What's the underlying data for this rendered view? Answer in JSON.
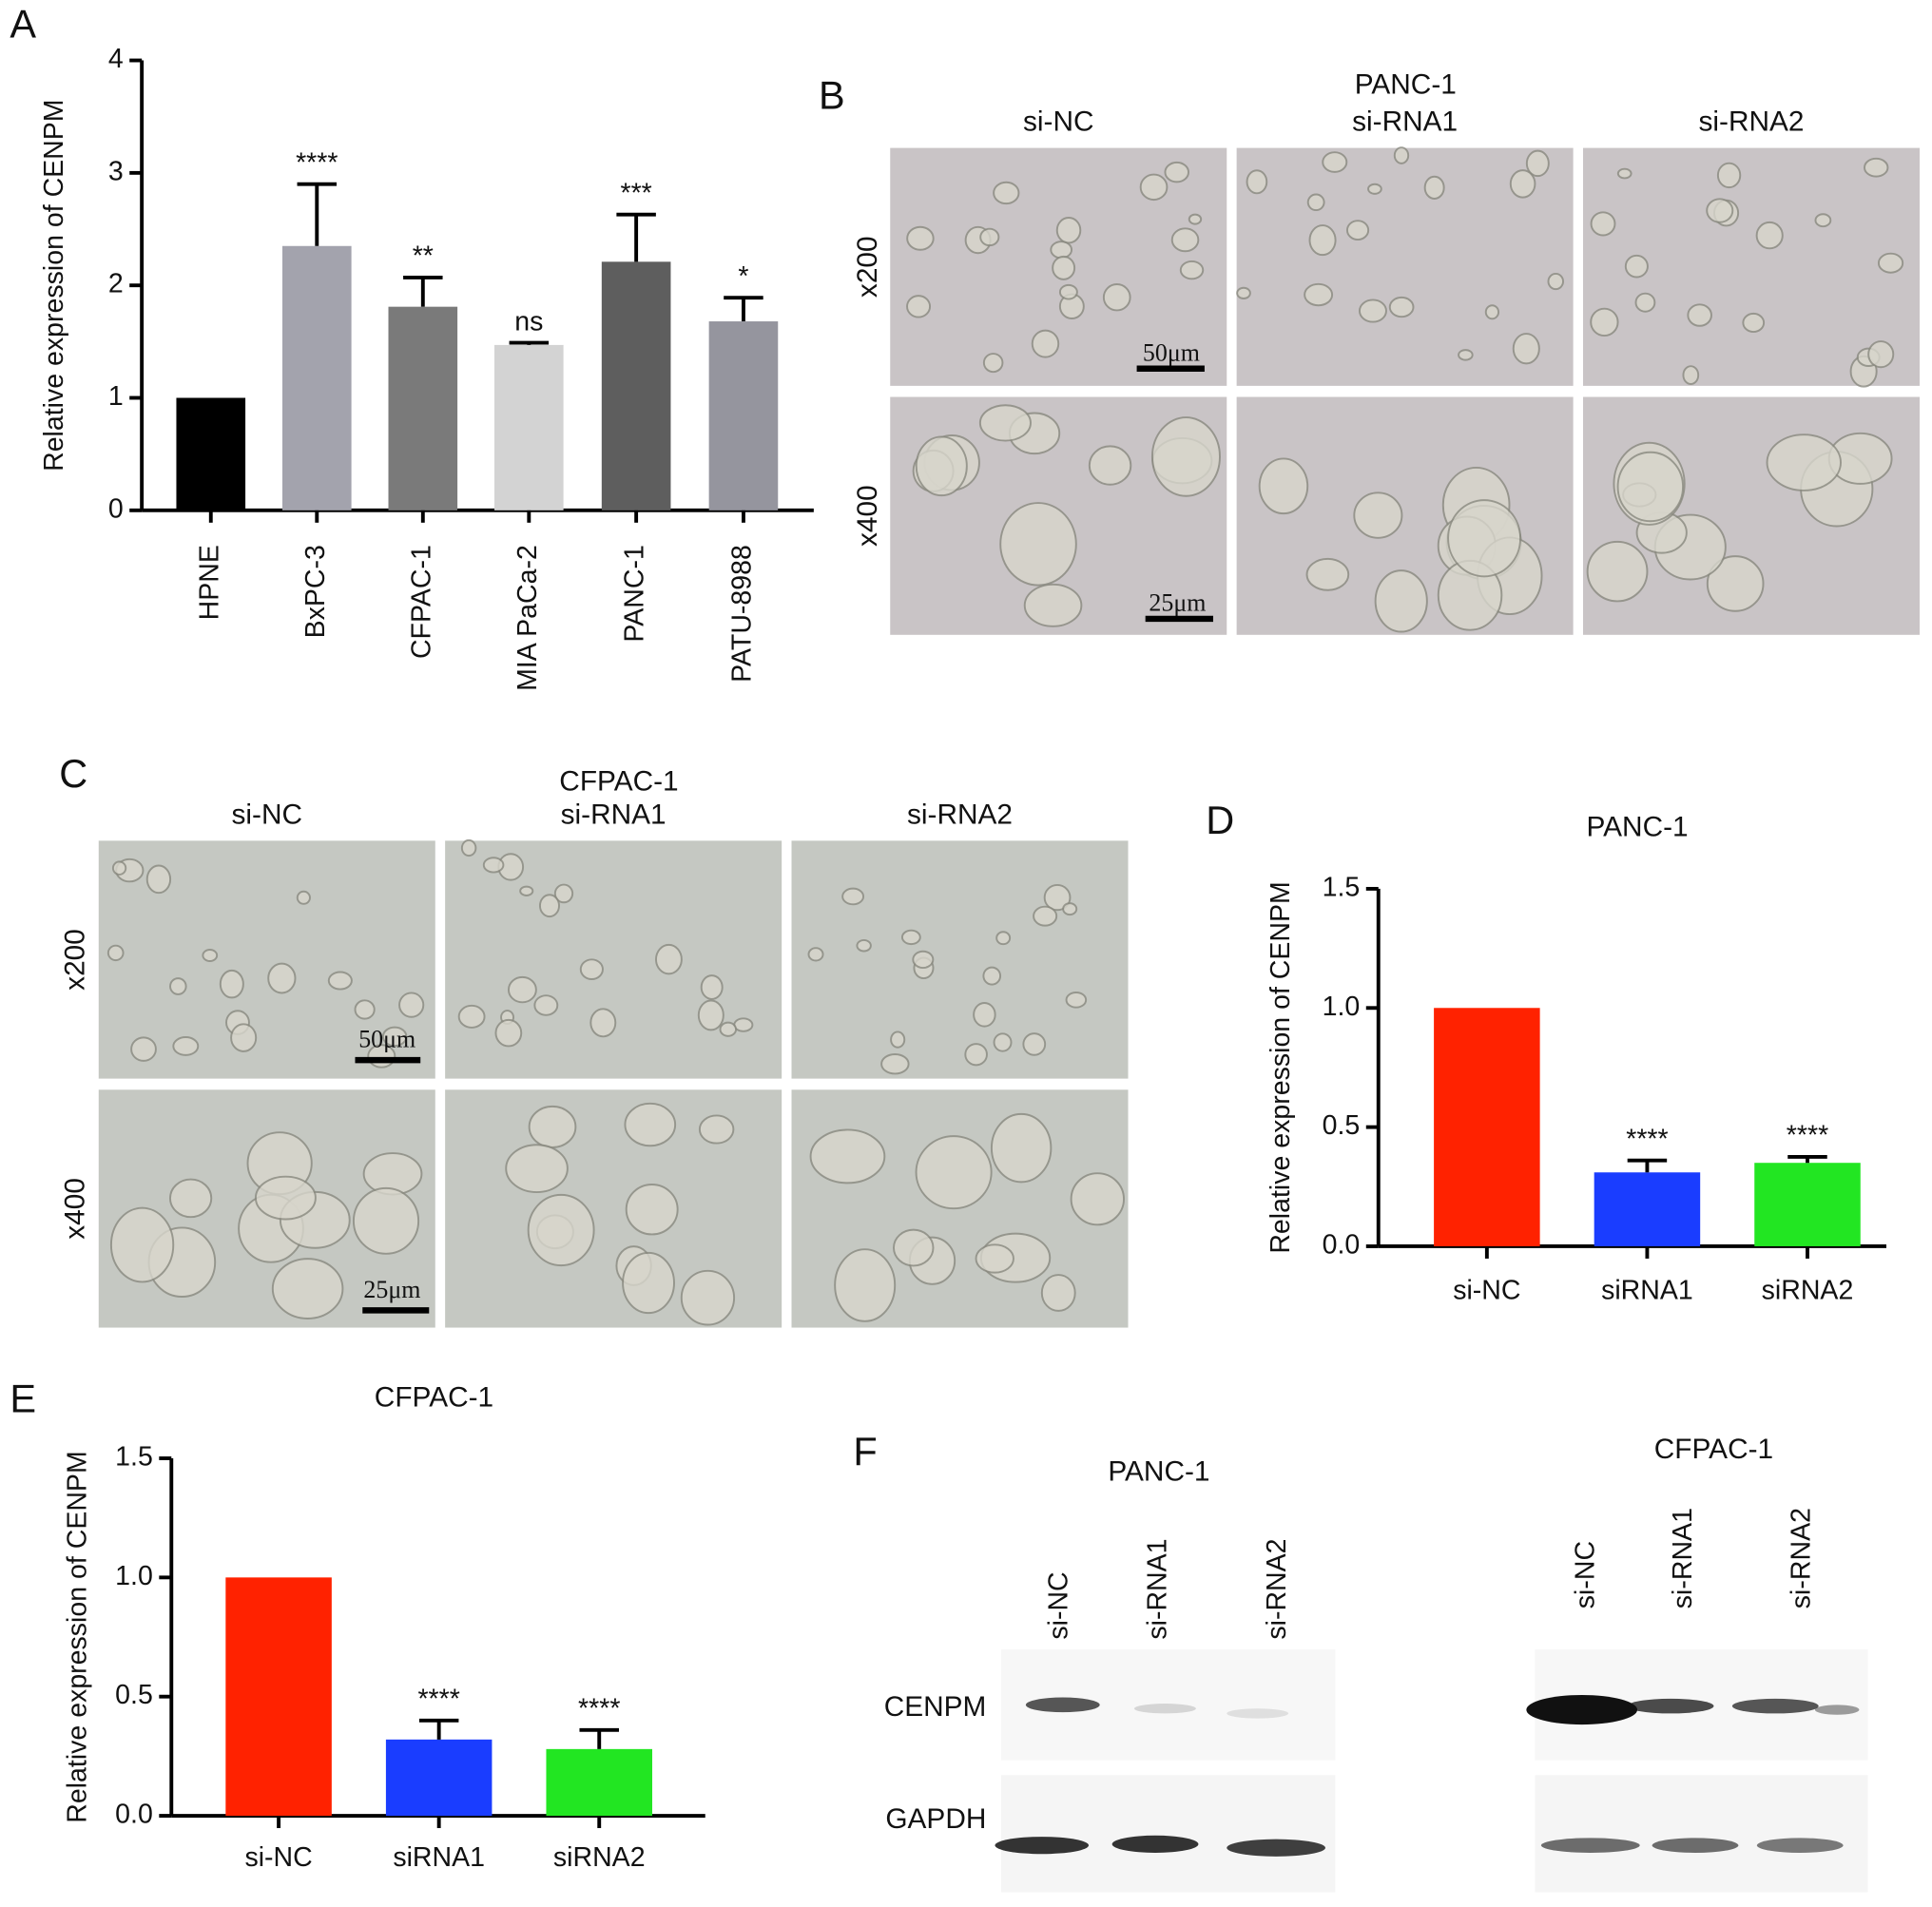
{
  "panel_labels": [
    "A",
    "B",
    "C",
    "D",
    "E",
    "F"
  ],
  "chart_data": [
    {
      "type": "bar",
      "ylabel": "Relative expression of CENPM",
      "categories": [
        "HPNE",
        "BxPC-3",
        "CFPAC-1",
        "MIA PaCa-2",
        "PANC-1",
        "PATU-8988"
      ],
      "values": [
        1,
        2.35,
        1.81,
        1.47,
        2.21,
        1.68
      ],
      "errors": [
        0,
        0.55,
        0.26,
        0.02,
        0.42,
        0.21
      ],
      "colors": [
        "#000000",
        "#a3a3ad",
        "#7a7a7a",
        "#d3d3d3",
        "#5e5e5e",
        "#95959e"
      ],
      "annotations": [
        null,
        "****",
        "**",
        "ns",
        "***",
        "*"
      ],
      "ylim": [
        0,
        4
      ],
      "yticks": [
        0,
        1,
        2,
        3,
        4
      ]
    },
    {
      "type": "bar",
      "title": "PANC-1",
      "ylabel": "Relative expression of CENPM",
      "categories": [
        "si-NC",
        "siRNA1",
        "siRNA2"
      ],
      "values": [
        1,
        0.31,
        0.35
      ],
      "errors": [
        0,
        0.05,
        0.025
      ],
      "colors": [
        "#ff2200",
        "#1a3dff",
        "#22e622"
      ],
      "annotations": [
        null,
        "****",
        "****"
      ],
      "ylim": [
        0,
        1.5
      ],
      "yticks": [
        {
          "value": 0,
          "label": "0.0"
        },
        {
          "value": 0.5,
          "label": "0.5"
        },
        {
          "value": 1,
          "label": "1.0"
        },
        {
          "value": 1.5,
          "label": "1.5"
        }
      ]
    },
    {
      "type": "bar",
      "title": "CFPAC-1",
      "ylabel": "Relative expression of CENPM",
      "categories": [
        "si-NC",
        "siRNA1",
        "siRNA2"
      ],
      "values": [
        1,
        0.32,
        0.28
      ],
      "errors": [
        0,
        0.08,
        0.08
      ],
      "colors": [
        "#ff2200",
        "#1a3dff",
        "#22e622"
      ],
      "annotations": [
        null,
        "****",
        "****"
      ],
      "ylim": [
        0,
        1.5
      ],
      "yticks": [
        {
          "value": 0,
          "label": "0.0"
        },
        {
          "value": 0.5,
          "label": "0.5"
        },
        {
          "value": 1,
          "label": "1.0"
        },
        {
          "value": 1.5,
          "label": "1.5"
        }
      ]
    }
  ],
  "micrographs": [
    {
      "title": "PANC-1",
      "columns": [
        "si-NC",
        "si-RNA1",
        "si-RNA2"
      ],
      "rows": [
        "x200",
        "x400"
      ],
      "scale_bars": [
        "50μm",
        "25μm"
      ]
    },
    {
      "title": "CFPAC-1",
      "columns": [
        "si-NC",
        "si-RNA1",
        "si-RNA2"
      ],
      "rows": [
        "x200",
        "x400"
      ],
      "scale_bars": [
        "50μm",
        "25μm"
      ]
    }
  ],
  "western_blot": {
    "proteins": [
      "CENPM",
      "GAPDH"
    ],
    "blots": [
      {
        "title": "PANC-1",
        "lanes": [
          "si-NC",
          "si-RNA1",
          "si-RNA2"
        ]
      },
      {
        "title": "CFPAC-1",
        "lanes": [
          "si-NC",
          "si-RNA1",
          "si-RNA2"
        ]
      }
    ]
  }
}
